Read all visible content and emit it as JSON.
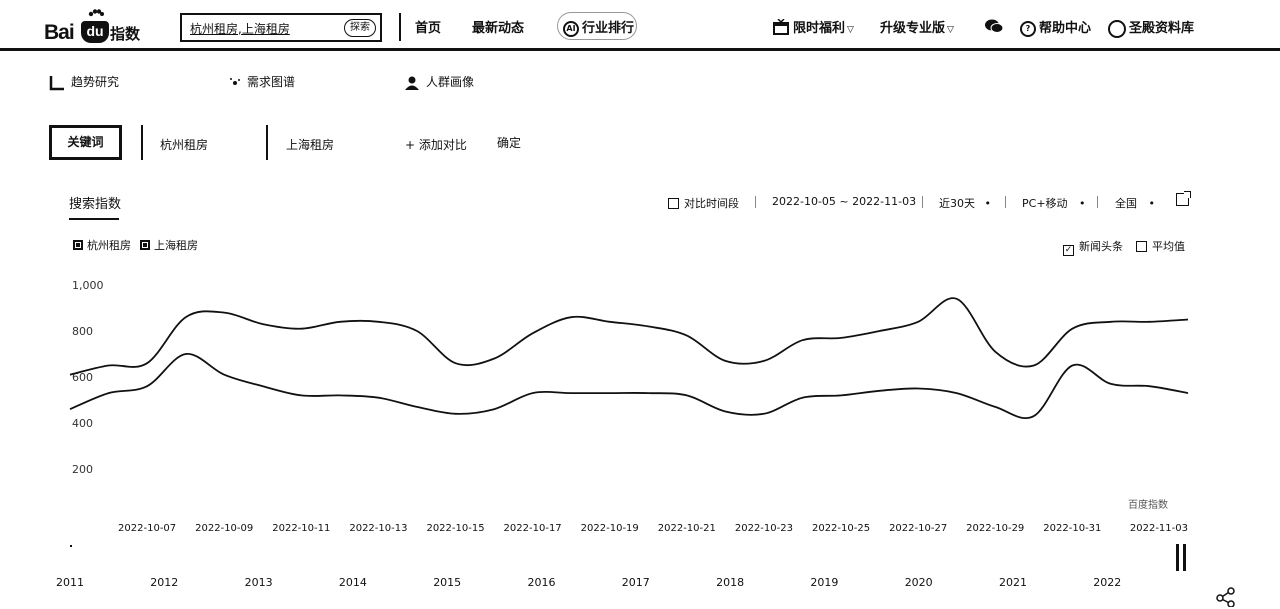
{
  "header": {
    "logo": {
      "bai": "Bai",
      "du": "du",
      "zhishu": "指数"
    },
    "search_value": "杭州租房,上海租房",
    "search_button": "探索",
    "nav": [
      "首页",
      "最新动态",
      "行业排行"
    ],
    "nav_active_icon": "AI",
    "right": {
      "promo": "限时福利",
      "upgrade": "升级专业版",
      "help": "帮助中心",
      "user": "圣殿资料库"
    }
  },
  "tabs": [
    "趋势研究",
    "需求图谱",
    "人群画像"
  ],
  "keywords": {
    "label": "关键词",
    "items": [
      "杭州租房",
      "上海租房"
    ],
    "add": "+ 添加对比",
    "confirm": "确定"
  },
  "toolbar": {
    "sub_tab": "搜索指数",
    "compare_period": "对比时间段",
    "date_range": "2022-10-05 ~ 2022-11-03",
    "recent": "近30天",
    "platform": "PC+移动",
    "region": "全国",
    "dropdown_marker": "•"
  },
  "legend": {
    "series": [
      "杭州租房",
      "上海租房"
    ],
    "news": "新闻头条",
    "average": "平均值"
  },
  "chart_data": {
    "type": "line",
    "x": [
      "2022-10-05",
      "2022-10-06",
      "2022-10-07",
      "2022-10-08",
      "2022-10-09",
      "2022-10-10",
      "2022-10-11",
      "2022-10-12",
      "2022-10-13",
      "2022-10-14",
      "2022-10-15",
      "2022-10-16",
      "2022-10-17",
      "2022-10-18",
      "2022-10-19",
      "2022-10-20",
      "2022-10-21",
      "2022-10-22",
      "2022-10-23",
      "2022-10-24",
      "2022-10-25",
      "2022-10-26",
      "2022-10-27",
      "2022-10-28",
      "2022-10-29",
      "2022-10-30",
      "2022-10-31",
      "2022-11-01",
      "2022-11-02",
      "2022-11-03"
    ],
    "xticks": [
      "2022-10-07",
      "2022-10-09",
      "2022-10-11",
      "2022-10-13",
      "2022-10-15",
      "2022-10-17",
      "2022-10-19",
      "2022-10-21",
      "2022-10-23",
      "2022-10-25",
      "2022-10-27",
      "2022-10-29",
      "2022-10-31",
      "2022-11-03"
    ],
    "yticks": [
      "1,000",
      "800",
      "600",
      "400",
      "200"
    ],
    "ytick_values": [
      1000,
      800,
      600,
      400,
      200
    ],
    "ylim": [
      0,
      1000
    ],
    "series": [
      {
        "values": [
          610,
          650,
          660,
          860,
          880,
          830,
          810,
          840,
          840,
          800,
          660,
          680,
          790,
          860,
          840,
          820,
          780,
          670,
          670,
          760,
          770,
          800,
          840,
          940,
          710,
          650,
          810,
          840,
          840,
          850
        ]
      },
      {
        "values": [
          460,
          530,
          560,
          700,
          610,
          560,
          520,
          520,
          510,
          470,
          440,
          460,
          530,
          530,
          530,
          530,
          520,
          450,
          440,
          510,
          520,
          540,
          550,
          530,
          470,
          430,
          650,
          570,
          560,
          530
        ]
      }
    ],
    "watermark": "百度指数"
  },
  "timeline": {
    "years": [
      "2011",
      "2012",
      "2013",
      "2014",
      "2015",
      "2016",
      "2017",
      "2018",
      "2019",
      "2020",
      "2021",
      "2022"
    ]
  },
  "icons": {
    "trend": "trend-icon",
    "demand": "demand-icon",
    "crowd": "person-icon",
    "external": "external-link-icon",
    "share": "share-icon",
    "gift": "gift-icon",
    "chat": "chat-icon"
  }
}
